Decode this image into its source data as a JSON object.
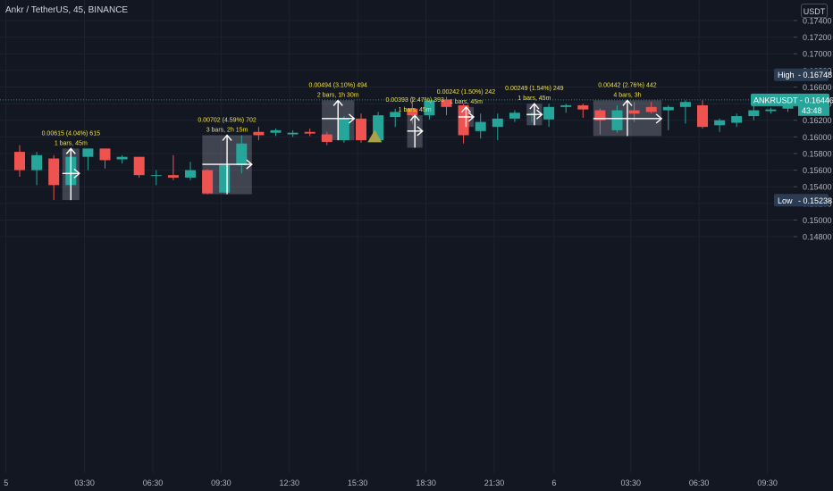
{
  "header": {
    "title": "Ankr / TetherUS, 45, BINANCE",
    "currency": "USDT"
  },
  "price_axis": {
    "ticks": [
      "0.17400",
      "0.17200",
      "0.17000",
      "0.16800",
      "0.16600",
      "0.16400",
      "0.16200",
      "0.16000",
      "0.15800",
      "0.15600",
      "0.15400",
      "0.15200",
      "0.15000",
      "0.14800"
    ]
  },
  "time_axis": {
    "ticks": [
      {
        "label": "5",
        "idx": -0.8
      },
      {
        "label": "03:30",
        "idx": 3.8
      },
      {
        "label": "06:30",
        "idx": 7.8
      },
      {
        "label": "09:30",
        "idx": 11.8
      },
      {
        "label": "12:30",
        "idx": 15.8
      },
      {
        "label": "15:30",
        "idx": 19.8
      },
      {
        "label": "18:30",
        "idx": 23.8
      },
      {
        "label": "21:30",
        "idx": 27.8
      },
      {
        "label": "6",
        "idx": 31.3
      },
      {
        "label": "03:30",
        "idx": 35.8
      },
      {
        "label": "06:30",
        "idx": 39.8
      },
      {
        "label": "09:30",
        "idx": 43.8
      }
    ]
  },
  "markers": {
    "high": {
      "label": "High",
      "value": "0.16748",
      "price": 0.16748
    },
    "low": {
      "label": "Low",
      "value": "0.15238",
      "price": 0.15238
    },
    "last": {
      "symbol": "ANKRUSDT",
      "value": "0.16446",
      "countdown": "43:48",
      "price": 0.16446
    }
  },
  "colors": {
    "background": "#131722",
    "up": "#26a69a",
    "down": "#ef5350",
    "annotation_text": "#f0e040",
    "triangle": "#a8a24a",
    "axis_text": "#b2b5be",
    "grid": "#1e2230"
  },
  "chart_data": {
    "type": "candlestick",
    "symbol": "Ankr / TetherUS",
    "interval": "45",
    "exchange": "BINANCE",
    "ylim": [
      0.147,
      0.175
    ],
    "candles": [
      {
        "o": 0.1582,
        "h": 0.159,
        "l": 0.1552,
        "c": 0.156
      },
      {
        "o": 0.156,
        "h": 0.1582,
        "l": 0.1542,
        "c": 0.1578
      },
      {
        "o": 0.1574,
        "h": 0.1578,
        "l": 0.1524,
        "c": 0.1542
      },
      {
        "o": 0.1542,
        "h": 0.158,
        "l": 0.1524,
        "c": 0.1576
      },
      {
        "o": 0.1576,
        "h": 0.1586,
        "l": 0.156,
        "c": 0.1586
      },
      {
        "o": 0.1586,
        "h": 0.1586,
        "l": 0.1562,
        "c": 0.1572
      },
      {
        "o": 0.1573,
        "h": 0.1578,
        "l": 0.1568,
        "c": 0.1576
      },
      {
        "o": 0.1576,
        "h": 0.1576,
        "l": 0.1551,
        "c": 0.1554
      },
      {
        "o": 0.1553,
        "h": 0.156,
        "l": 0.1542,
        "c": 0.1554
      },
      {
        "o": 0.1554,
        "h": 0.1578,
        "l": 0.1548,
        "c": 0.1551
      },
      {
        "o": 0.1551,
        "h": 0.157,
        "l": 0.1548,
        "c": 0.156
      },
      {
        "o": 0.156,
        "h": 0.1561,
        "l": 0.1531,
        "c": 0.1532
      },
      {
        "o": 0.1533,
        "h": 0.1566,
        "l": 0.1532,
        "c": 0.1566
      },
      {
        "o": 0.1566,
        "h": 0.1602,
        "l": 0.1556,
        "c": 0.1592
      },
      {
        "o": 0.1606,
        "h": 0.1612,
        "l": 0.1596,
        "c": 0.1602
      },
      {
        "o": 0.1605,
        "h": 0.161,
        "l": 0.1601,
        "c": 0.1608
      },
      {
        "o": 0.1603,
        "h": 0.1608,
        "l": 0.16,
        "c": 0.1605
      },
      {
        "o": 0.1606,
        "h": 0.161,
        "l": 0.1601,
        "c": 0.1604
      },
      {
        "o": 0.1603,
        "h": 0.1606,
        "l": 0.159,
        "c": 0.1594
      },
      {
        "o": 0.1596,
        "h": 0.1625,
        "l": 0.1593,
        "c": 0.1622
      },
      {
        "o": 0.1622,
        "h": 0.1628,
        "l": 0.1593,
        "c": 0.1596
      },
      {
        "o": 0.1596,
        "h": 0.163,
        "l": 0.1594,
        "c": 0.1626
      },
      {
        "o": 0.1624,
        "h": 0.1634,
        "l": 0.1612,
        "c": 0.163
      },
      {
        "o": 0.1634,
        "h": 0.1648,
        "l": 0.1616,
        "c": 0.1626
      },
      {
        "o": 0.1626,
        "h": 0.1646,
        "l": 0.1621,
        "c": 0.1644
      },
      {
        "o": 0.1645,
        "h": 0.1648,
        "l": 0.1626,
        "c": 0.1636
      },
      {
        "o": 0.1638,
        "h": 0.164,
        "l": 0.1592,
        "c": 0.1602
      },
      {
        "o": 0.1607,
        "h": 0.1628,
        "l": 0.1598,
        "c": 0.1618
      },
      {
        "o": 0.1612,
        "h": 0.1628,
        "l": 0.1596,
        "c": 0.1622
      },
      {
        "o": 0.1622,
        "h": 0.1632,
        "l": 0.1618,
        "c": 0.1629
      },
      {
        "o": 0.1626,
        "h": 0.163,
        "l": 0.1618,
        "c": 0.1627
      },
      {
        "o": 0.1621,
        "h": 0.164,
        "l": 0.1612,
        "c": 0.1636
      },
      {
        "o": 0.1636,
        "h": 0.164,
        "l": 0.1629,
        "c": 0.1638
      },
      {
        "o": 0.1638,
        "h": 0.164,
        "l": 0.1623,
        "c": 0.1633
      },
      {
        "o": 0.1632,
        "h": 0.1634,
        "l": 0.1603,
        "c": 0.162
      },
      {
        "o": 0.1608,
        "h": 0.1638,
        "l": 0.1605,
        "c": 0.1632
      },
      {
        "o": 0.1632,
        "h": 0.1642,
        "l": 0.1618,
        "c": 0.1628
      },
      {
        "o": 0.1636,
        "h": 0.1642,
        "l": 0.1628,
        "c": 0.163
      },
      {
        "o": 0.1632,
        "h": 0.1638,
        "l": 0.1608,
        "c": 0.1636
      },
      {
        "o": 0.1636,
        "h": 0.1644,
        "l": 0.1616,
        "c": 0.1642
      },
      {
        "o": 0.1638,
        "h": 0.1644,
        "l": 0.161,
        "c": 0.1612
      },
      {
        "o": 0.1614,
        "h": 0.1622,
        "l": 0.1606,
        "c": 0.162
      },
      {
        "o": 0.1617,
        "h": 0.1628,
        "l": 0.1612,
        "c": 0.1625
      },
      {
        "o": 0.1625,
        "h": 0.1638,
        "l": 0.162,
        "c": 0.1632
      },
      {
        "o": 0.1631,
        "h": 0.1635,
        "l": 0.1628,
        "c": 0.1633
      },
      {
        "o": 0.1634,
        "h": 0.1649,
        "l": 0.163,
        "c": 0.1643
      },
      {
        "o": 0.1643,
        "h": 0.1652,
        "l": 0.1638,
        "c": 0.1644
      },
      {
        "o": 0.1644,
        "h": 0.165,
        "l": 0.163,
        "c": 0.1636
      },
      {
        "o": 0.1637,
        "h": 0.1664,
        "l": 0.1636,
        "c": 0.1662
      },
      {
        "o": 0.1662,
        "h": 0.1675,
        "l": 0.1634,
        "c": 0.1644
      },
      {
        "o": 0.1645,
        "h": 0.1647,
        "l": 0.164,
        "c": 0.1645
      }
    ],
    "measurements": [
      {
        "label": "0.00615 (4.04%) 615",
        "sublabel": "1 bars, 45m",
        "start": 2.5,
        "end": 3.5,
        "top": 0.1586,
        "bottom": 0.1524,
        "base": 0.1556
      },
      {
        "label": "0.00702 (4.59%) 702",
        "sublabel": "3 bars, 2h 15m",
        "start": 10.7,
        "end": 13.6,
        "top": 0.1602,
        "bottom": 0.1531,
        "base": 0.1567
      },
      {
        "label": "0.00494 (3.10%) 494",
        "sublabel": "2 bars, 1h 30m",
        "start": 17.7,
        "end": 19.6,
        "top": 0.1644,
        "bottom": 0.1596,
        "base": 0.1622
      },
      {
        "label": "0.00393 (2.47%) 393",
        "sublabel": "1 bars, 45m",
        "start": 22.7,
        "end": 23.6,
        "top": 0.1626,
        "bottom": 0.1587,
        "base": 0.1607
      },
      {
        "label": "0.00242 (1.50%) 242",
        "sublabel": "1 bars, 45m",
        "start": 25.7,
        "end": 26.6,
        "top": 0.1636,
        "bottom": 0.1612,
        "base": 0.1624
      },
      {
        "label": "0.00249 (1.54%) 249",
        "sublabel": "1 bars, 45m",
        "start": 29.7,
        "end": 30.6,
        "top": 0.164,
        "bottom": 0.1614,
        "base": 0.1627
      },
      {
        "label": "0.00442 (2.76%) 442",
        "sublabel": "4 bars, 3h",
        "start": 33.6,
        "end": 37.6,
        "top": 0.1644,
        "bottom": 0.1601,
        "base": 0.1622
      }
    ],
    "signals": [
      {
        "type": "triangle-up",
        "idx": 20.8,
        "price": 0.16
      }
    ]
  }
}
